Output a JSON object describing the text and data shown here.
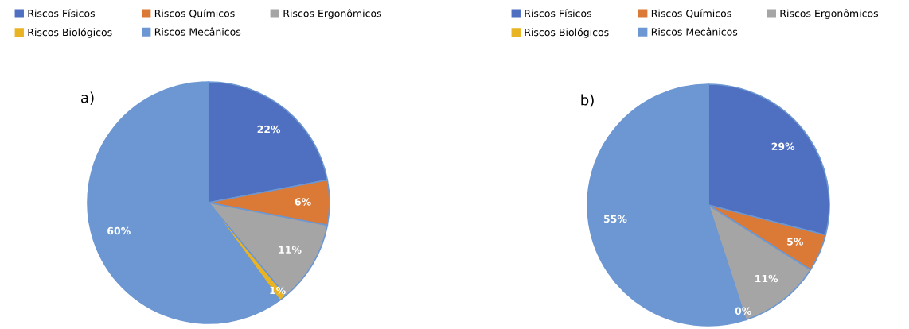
{
  "chart_data": [
    {
      "type": "pie",
      "categories": [
        "Riscos Físicos",
        "Riscos Químicos",
        "Riscos Ergonômicos",
        "Riscos Biológicos",
        "Riscos Mecânicos"
      ],
      "values": [
        22,
        6,
        11,
        1,
        60
      ],
      "colors": [
        "#4f6fc0",
        "#db7a36",
        "#a5a5a5",
        "#e8b424",
        "#6d97d2"
      ],
      "value_labels": [
        "22%",
        "6%",
        "11%",
        "1%",
        "60%"
      ],
      "legend": "top left",
      "annotations": [
        "a)"
      ]
    },
    {
      "type": "pie",
      "categories": [
        "Riscos Físicos",
        "Riscos Químicos",
        "Riscos Ergonômicos",
        "Riscos Biológicos",
        "Riscos Mecânicos"
      ],
      "values": [
        29,
        5,
        11,
        0,
        55
      ],
      "colors": [
        "#4f6fc0",
        "#db7a36",
        "#a5a5a5",
        "#e8b424",
        "#6d97d2"
      ],
      "value_labels": [
        "29%",
        "5%",
        "11%",
        "0%",
        "55%"
      ],
      "legend": "top left",
      "annotations": [
        "b)"
      ]
    }
  ]
}
